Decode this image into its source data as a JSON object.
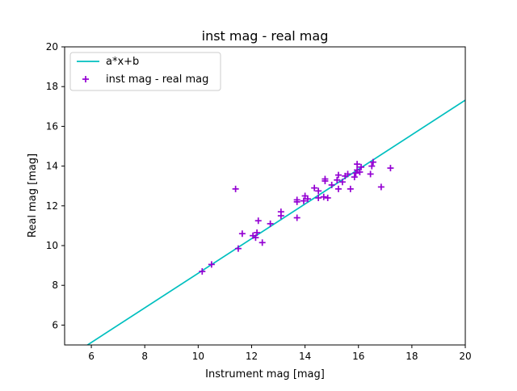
{
  "chart_data": {
    "type": "scatter",
    "title": "inst mag - real mag",
    "xlabel": "Instrument mag [mag]",
    "ylabel": "Real mag [mag]",
    "xlim": [
      5,
      20
    ],
    "ylim": [
      5,
      20
    ],
    "xticks": [
      6,
      8,
      10,
      12,
      14,
      16,
      18,
      20
    ],
    "yticks": [
      6,
      8,
      10,
      12,
      14,
      16,
      18,
      20
    ],
    "grid": false,
    "legend_position": "top-left",
    "fit_line": {
      "name": "a*x+b",
      "color": "#00bfbf",
      "points": [
        [
          5.8,
          4.95
        ],
        [
          20,
          17.32
        ]
      ]
    },
    "series": [
      {
        "name": "inst mag - real mag",
        "color": "#9400d3",
        "marker": "+",
        "points": [
          [
            10.15,
            8.7
          ],
          [
            10.5,
            9.05
          ],
          [
            11.4,
            12.85
          ],
          [
            11.5,
            9.85
          ],
          [
            11.65,
            10.6
          ],
          [
            12.05,
            10.5
          ],
          [
            12.15,
            10.4
          ],
          [
            12.2,
            10.65
          ],
          [
            12.25,
            11.25
          ],
          [
            12.4,
            10.15
          ],
          [
            12.7,
            11.1
          ],
          [
            13.1,
            11.5
          ],
          [
            13.1,
            11.7
          ],
          [
            13.7,
            11.4
          ],
          [
            13.7,
            12.2
          ],
          [
            13.7,
            12.3
          ],
          [
            13.95,
            12.25
          ],
          [
            14.0,
            12.5
          ],
          [
            14.1,
            12.35
          ],
          [
            14.35,
            12.9
          ],
          [
            14.5,
            12.4
          ],
          [
            14.5,
            12.75
          ],
          [
            14.7,
            12.45
          ],
          [
            14.75,
            13.25
          ],
          [
            14.75,
            13.35
          ],
          [
            14.85,
            12.4
          ],
          [
            15.0,
            13.05
          ],
          [
            15.2,
            13.3
          ],
          [
            15.25,
            12.85
          ],
          [
            15.25,
            13.55
          ],
          [
            15.4,
            13.2
          ],
          [
            15.5,
            13.5
          ],
          [
            15.6,
            13.6
          ],
          [
            15.7,
            12.85
          ],
          [
            15.85,
            13.45
          ],
          [
            15.9,
            13.65
          ],
          [
            15.95,
            13.8
          ],
          [
            15.95,
            14.1
          ],
          [
            16.05,
            13.7
          ],
          [
            16.1,
            13.95
          ],
          [
            16.45,
            13.6
          ],
          [
            16.5,
            14.0
          ],
          [
            16.55,
            14.2
          ],
          [
            16.85,
            12.95
          ],
          [
            17.2,
            13.9
          ]
        ]
      }
    ]
  }
}
